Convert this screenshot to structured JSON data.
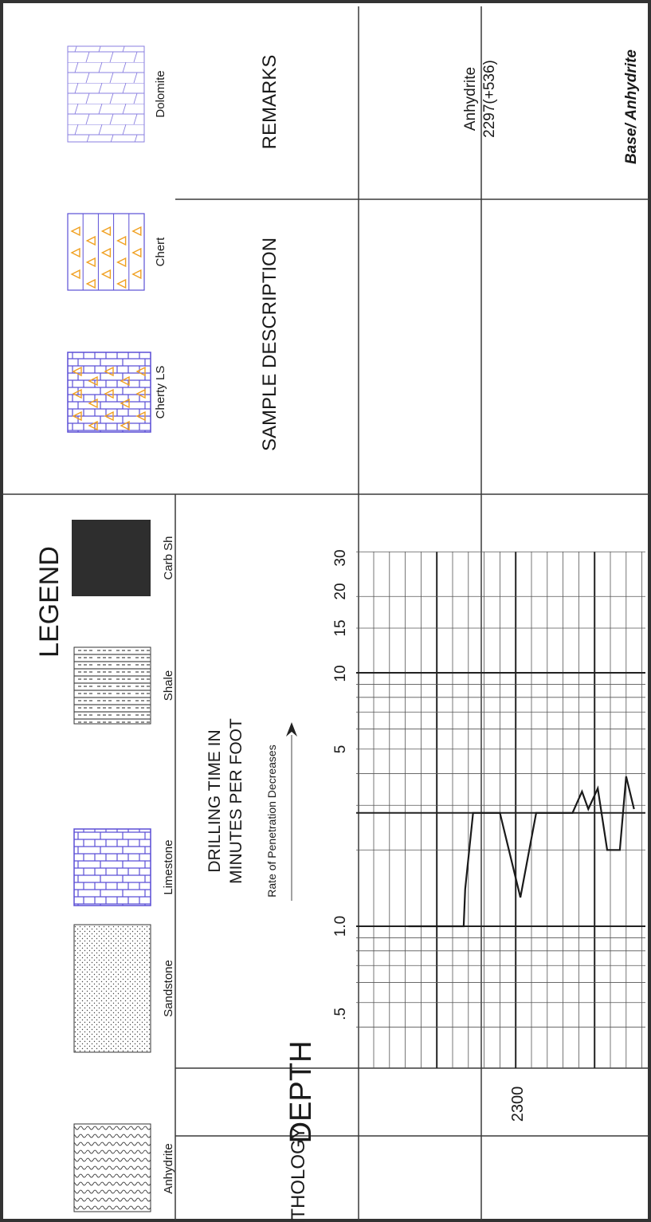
{
  "legend": {
    "title": "LEGEND",
    "items": [
      {
        "label": "Anhydrite",
        "pattern": "anhydrite-pattern"
      },
      {
        "label": "Sandstone",
        "pattern": "sandstone-pattern"
      },
      {
        "label": "Limestone",
        "pattern": "limestone-pattern"
      },
      {
        "label": "Shale",
        "pattern": "shale-pattern"
      },
      {
        "label": "Carb Sh",
        "pattern": "carbonaceous-shale-pattern"
      },
      {
        "label": "Cherty LS",
        "pattern": "cherty-limestone-pattern"
      },
      {
        "label": "Chert",
        "pattern": "chert-pattern"
      },
      {
        "label": "Dolomite",
        "pattern": "dolomite-pattern"
      }
    ]
  },
  "headers": {
    "lithology": "LITHOLOGY",
    "depth": "DEPTH",
    "drilling_time_line1": "DRILLING TIME IN",
    "drilling_time_line2": "MINUTES PER FOOT",
    "rate_note": "Rate of Penetration Decreases",
    "sample_description": "SAMPLE DESCRIPTION",
    "remarks": "REMARKS"
  },
  "scale_labels": [
    ".5",
    "1.0",
    "5",
    "10",
    "15",
    "20",
    "30"
  ],
  "depth_marker": "2300",
  "remarks_entries": [
    {
      "line1": "Anhydrite",
      "line2": "2297(+536)"
    },
    {
      "line1": "Base/ Anhydrite",
      "line2": ""
    }
  ],
  "colors": {
    "limestone": "#5b4fd6",
    "chert_triangle": "#f0a020",
    "cherty_ls_triangle": "#e0401a",
    "carb_shale": "#2e2e2e"
  },
  "chart_data": {
    "type": "line",
    "xlabel": "DRILLING TIME IN MINUTES PER FOOT",
    "scale": "log",
    "xlim": [
      0.35,
      30
    ],
    "tick_labels": [
      ".5",
      "1.0",
      "5",
      "10",
      "15",
      "20",
      "30"
    ],
    "y_marker": 2300,
    "series": [
      {
        "points": [
          {
            "depth": 2293.2,
            "minutes": 1.0
          },
          {
            "depth": 2296.7,
            "minutes": 1.0
          },
          {
            "depth": 2296.8,
            "minutes": 1.4
          },
          {
            "depth": 2297.3,
            "minutes": 2.8
          },
          {
            "depth": 2299.0,
            "minutes": 2.8
          },
          {
            "depth": 2300.3,
            "minutes": 1.3
          },
          {
            "depth": 2301.3,
            "minutes": 2.8
          },
          {
            "depth": 2303.6,
            "minutes": 2.8
          },
          {
            "depth": 2304.2,
            "minutes": 3.4
          },
          {
            "depth": 2304.6,
            "minutes": 2.9
          },
          {
            "depth": 2305.2,
            "minutes": 3.5
          },
          {
            "depth": 2305.8,
            "minutes": 2.0
          },
          {
            "depth": 2306.6,
            "minutes": 2.0
          },
          {
            "depth": 2307.0,
            "minutes": 3.9
          },
          {
            "depth": 2307.5,
            "minutes": 2.9
          }
        ]
      }
    ]
  }
}
